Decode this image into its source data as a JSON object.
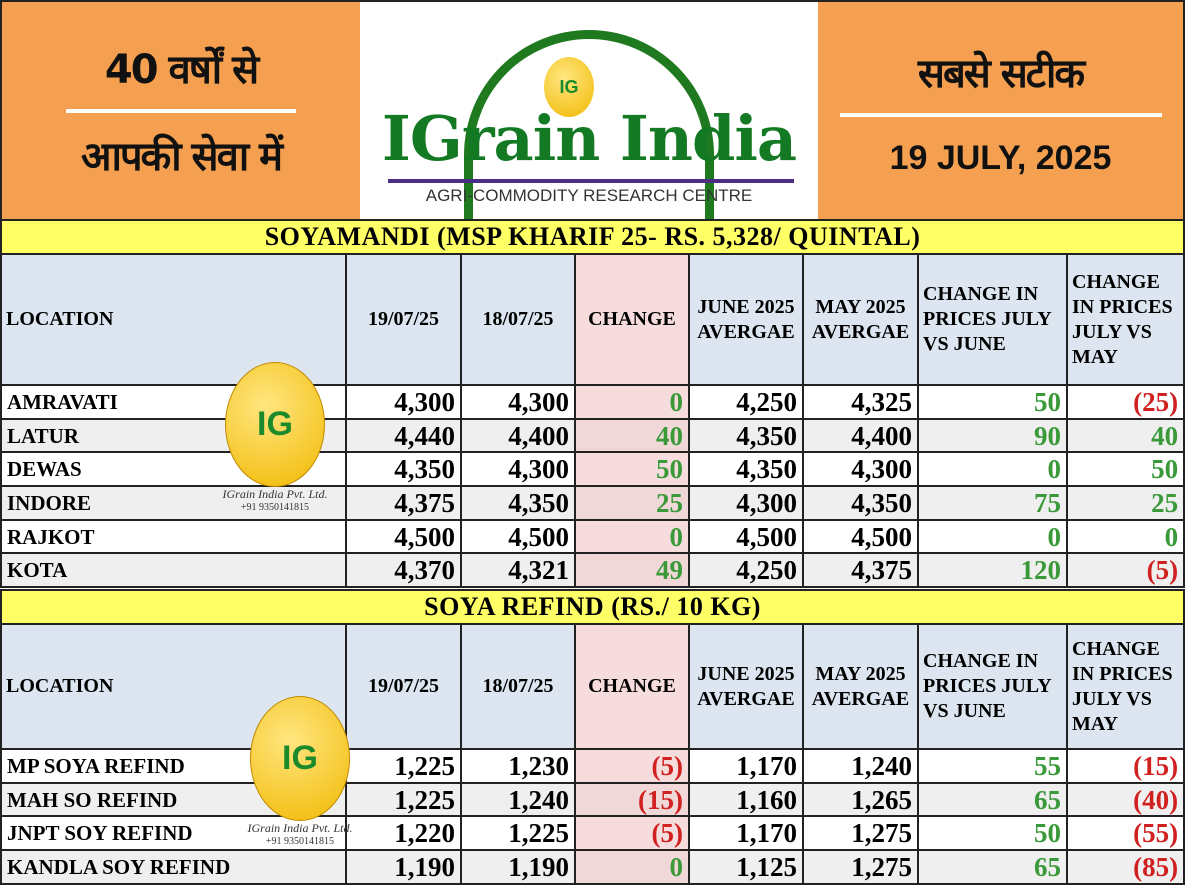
{
  "header": {
    "left_line1": "40 वर्षों से",
    "left_line2": "आपकी सेवा में",
    "right_line1": "सबसे सटीक",
    "date": "19 JULY, 2025",
    "brand": "IGrain India",
    "tagline": "AGRI-COMMODITY RESEARCH CENTRE",
    "logo_mark": "IG"
  },
  "watermark": {
    "company": "IGrain India Pvt. Ltd.",
    "phone": "+91 9350141815",
    "mark": "IG"
  },
  "colors": {
    "positive": "#3a9a3a",
    "negative": "#d02020",
    "title_bar": "#ffff66",
    "header_bg": "#f4a050"
  },
  "columns": [
    "LOCATION",
    "19/07/25",
    "18/07/25",
    "CHANGE",
    "JUNE 2025 AVERGAE",
    "MAY 2025 AVERGAE",
    "CHANGE IN PRICES JULY VS JUNE",
    "CHANGE IN PRICES JULY VS MAY"
  ],
  "tables": [
    {
      "title": "SOYAMANDI (MSP KHARIF 25- RS. 5,328/ QUINTAL)",
      "rows": [
        [
          "AMRAVATI",
          "4,300",
          "4,300",
          "0",
          "4,250",
          "4,325",
          "50",
          "(25)"
        ],
        [
          "LATUR",
          "4,440",
          "4,400",
          "40",
          "4,350",
          "4,400",
          "90",
          "40"
        ],
        [
          "DEWAS",
          "4,350",
          "4,300",
          "50",
          "4,350",
          "4,300",
          "0",
          "50"
        ],
        [
          "INDORE",
          "4,375",
          "4,350",
          "25",
          "4,300",
          "4,350",
          "75",
          "25"
        ],
        [
          "RAJKOT",
          "4,500",
          "4,500",
          "0",
          "4,500",
          "4,500",
          "0",
          "0"
        ],
        [
          "KOTA",
          "4,370",
          "4,321",
          "49",
          "4,250",
          "4,375",
          "120",
          "(5)"
        ]
      ]
    },
    {
      "title": "SOYA REFIND (RS./ 10 KG)",
      "rows": [
        [
          "MP SOYA REFIND",
          "1,225",
          "1,230",
          "(5)",
          "1,170",
          "1,240",
          "55",
          "(15)"
        ],
        [
          "MAH SO REFIND",
          "1,225",
          "1,240",
          "(15)",
          "1,160",
          "1,265",
          "65",
          "(40)"
        ],
        [
          "JNPT SOY REFIND",
          "1,220",
          "1,225",
          "(5)",
          "1,170",
          "1,275",
          "50",
          "(55)"
        ],
        [
          "KANDLA SOY REFIND",
          "1,190",
          "1,190",
          "0",
          "1,125",
          "1,275",
          "65",
          "(85)"
        ]
      ]
    }
  ]
}
